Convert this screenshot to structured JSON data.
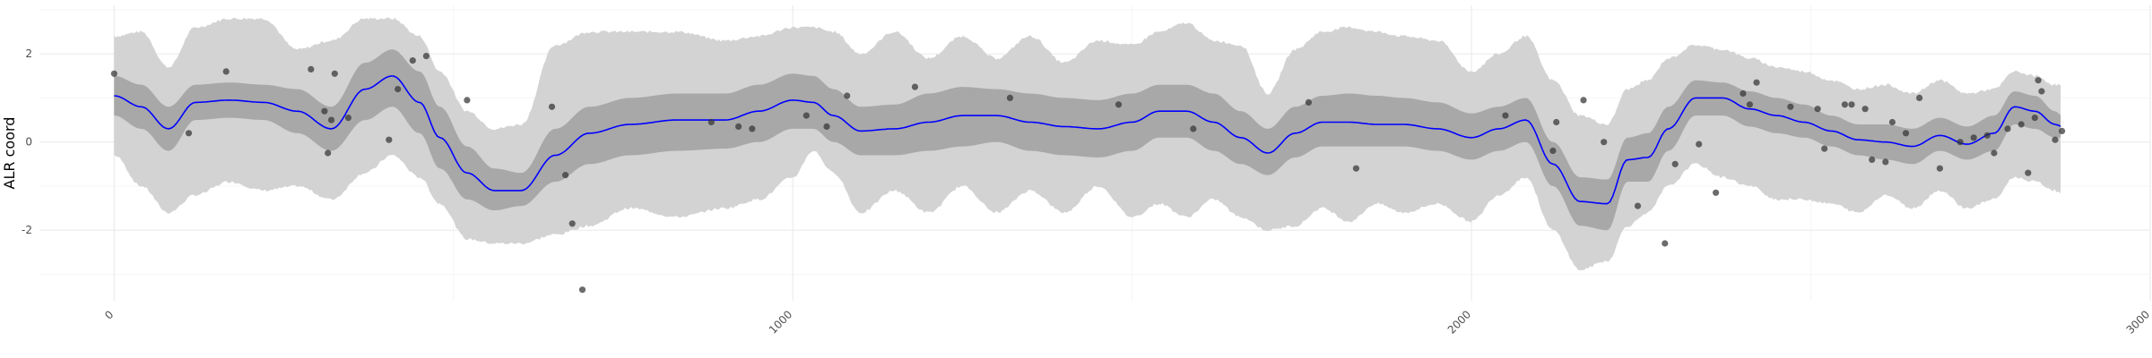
{
  "chart_data": {
    "type": "line",
    "title": "",
    "xlabel": "",
    "ylabel": "ALR coord",
    "xlim": [
      -110,
      3000
    ],
    "ylim": [
      -3.6,
      3.1
    ],
    "x_ticks": [
      0,
      1000,
      2000,
      3000
    ],
    "x_tick_labels": [
      "0",
      "1000",
      "2000",
      "3000"
    ],
    "y_ticks": [
      -2,
      0,
      2
    ],
    "y_tick_labels": [
      "-2",
      "0",
      "2"
    ],
    "grid": true,
    "legend": "none",
    "colors": {
      "mean_line": "#0000ff",
      "inner_band": "#a8a8a8",
      "outer_band": "#d3d3d3",
      "points": "#333333",
      "grid_major": "#ebebeb",
      "grid_minor": "#f5f5f5"
    },
    "mean_curve": {
      "x": [
        0,
        40,
        80,
        120,
        170,
        220,
        270,
        320,
        370,
        410,
        450,
        480,
        520,
        560,
        600,
        650,
        700,
        760,
        830,
        900,
        950,
        1000,
        1030,
        1060,
        1100,
        1150,
        1200,
        1250,
        1300,
        1350,
        1400,
        1450,
        1500,
        1540,
        1580,
        1620,
        1660,
        1700,
        1740,
        1780,
        1820,
        1860,
        1900,
        1950,
        2000,
        2040,
        2080,
        2120,
        2160,
        2200,
        2230,
        2260,
        2290,
        2330,
        2370,
        2410,
        2450,
        2490,
        2530,
        2570,
        2610,
        2650,
        2690,
        2730,
        2770,
        2800,
        2830,
        2860,
        2870
      ],
      "y": [
        1.05,
        0.8,
        0.3,
        0.9,
        0.95,
        0.9,
        0.7,
        0.3,
        1.2,
        1.5,
        0.9,
        0.1,
        -0.7,
        -1.1,
        -1.1,
        -0.3,
        0.2,
        0.4,
        0.5,
        0.5,
        0.7,
        0.95,
        0.9,
        0.6,
        0.25,
        0.3,
        0.45,
        0.6,
        0.6,
        0.45,
        0.35,
        0.3,
        0.45,
        0.7,
        0.7,
        0.45,
        0.1,
        -0.25,
        0.2,
        0.45,
        0.45,
        0.4,
        0.4,
        0.3,
        0.1,
        0.3,
        0.5,
        -0.5,
        -1.35,
        -1.4,
        -0.4,
        -0.35,
        0.3,
        1.0,
        1.0,
        0.75,
        0.6,
        0.45,
        0.25,
        0.05,
        0.0,
        -0.1,
        0.15,
        -0.05,
        0.2,
        0.8,
        0.7,
        0.4,
        0.35
      ]
    },
    "inner_band": {
      "x": [
        0,
        40,
        80,
        120,
        170,
        220,
        270,
        320,
        370,
        410,
        450,
        480,
        520,
        560,
        600,
        650,
        700,
        760,
        830,
        900,
        950,
        1000,
        1030,
        1060,
        1100,
        1150,
        1200,
        1250,
        1300,
        1350,
        1400,
        1450,
        1500,
        1540,
        1580,
        1620,
        1660,
        1700,
        1740,
        1780,
        1820,
        1860,
        1900,
        1950,
        2000,
        2040,
        2080,
        2120,
        2160,
        2200,
        2230,
        2260,
        2290,
        2330,
        2370,
        2410,
        2450,
        2490,
        2530,
        2570,
        2610,
        2650,
        2690,
        2730,
        2770,
        2800,
        2830,
        2860,
        2870
      ],
      "lower": [
        0.6,
        0.3,
        -0.2,
        0.5,
        0.55,
        0.5,
        0.2,
        -0.2,
        0.5,
        0.8,
        0.2,
        -0.6,
        -1.3,
        -1.55,
        -1.45,
        -0.9,
        -0.5,
        -0.3,
        -0.2,
        -0.15,
        0.0,
        0.3,
        0.3,
        0.0,
        -0.3,
        -0.3,
        -0.2,
        -0.1,
        0.0,
        -0.2,
        -0.3,
        -0.35,
        -0.2,
        0.1,
        0.1,
        -0.2,
        -0.5,
        -0.75,
        -0.35,
        -0.1,
        -0.1,
        -0.1,
        -0.1,
        -0.2,
        -0.4,
        -0.2,
        0.0,
        -1.0,
        -1.9,
        -2.0,
        -0.9,
        -0.9,
        -0.2,
        0.6,
        0.6,
        0.35,
        0.2,
        0.1,
        -0.1,
        -0.3,
        -0.4,
        -0.5,
        -0.2,
        -0.4,
        -0.2,
        0.4,
        0.3,
        0.1,
        0.1
      ],
      "upper": [
        1.5,
        1.3,
        0.8,
        1.3,
        1.35,
        1.3,
        1.2,
        0.8,
        1.8,
        2.1,
        1.6,
        0.8,
        -0.1,
        -0.6,
        -0.7,
        0.3,
        0.8,
        1.0,
        1.1,
        1.1,
        1.3,
        1.55,
        1.5,
        1.2,
        0.8,
        0.85,
        1.1,
        1.25,
        1.2,
        1.1,
        1.0,
        0.95,
        1.1,
        1.3,
        1.3,
        1.1,
        0.7,
        0.3,
        0.8,
        1.05,
        1.1,
        1.05,
        1.0,
        0.9,
        0.65,
        0.8,
        1.0,
        0.0,
        -0.8,
        -0.85,
        0.1,
        0.2,
        0.8,
        1.4,
        1.35,
        1.15,
        1.0,
        0.85,
        0.6,
        0.4,
        0.4,
        0.3,
        0.55,
        0.35,
        0.6,
        1.15,
        1.05,
        0.7,
        0.6
      ]
    },
    "outer_band": {
      "x": [
        0,
        40,
        80,
        120,
        170,
        220,
        270,
        320,
        370,
        410,
        450,
        480,
        520,
        560,
        600,
        650,
        700,
        760,
        830,
        900,
        950,
        1000,
        1030,
        1060,
        1100,
        1150,
        1200,
        1250,
        1300,
        1350,
        1400,
        1450,
        1500,
        1540,
        1580,
        1620,
        1660,
        1700,
        1740,
        1780,
        1820,
        1860,
        1900,
        1950,
        2000,
        2040,
        2080,
        2120,
        2160,
        2200,
        2230,
        2260,
        2290,
        2330,
        2370,
        2410,
        2450,
        2490,
        2530,
        2570,
        2610,
        2650,
        2690,
        2730,
        2770,
        2800,
        2830,
        2860,
        2870
      ],
      "lower": [
        -0.3,
        -1.0,
        -1.6,
        -1.2,
        -0.9,
        -1.1,
        -1.0,
        -1.3,
        -0.7,
        -0.3,
        -0.8,
        -1.4,
        -2.2,
        -2.3,
        -2.3,
        -2.1,
        -1.9,
        -1.5,
        -1.7,
        -1.5,
        -1.3,
        -0.8,
        -0.2,
        -0.7,
        -1.6,
        -1.1,
        -1.6,
        -1.0,
        -1.6,
        -1.1,
        -1.6,
        -1.0,
        -1.7,
        -1.4,
        -1.7,
        -1.3,
        -1.7,
        -2.0,
        -1.9,
        -1.5,
        -1.8,
        -1.4,
        -1.6,
        -1.4,
        -1.8,
        -1.2,
        -0.8,
        -2.0,
        -2.9,
        -2.7,
        -1.9,
        -1.6,
        -1.0,
        -0.5,
        -0.8,
        -1.0,
        -1.3,
        -1.3,
        -1.4,
        -1.6,
        -1.2,
        -1.5,
        -1.1,
        -1.5,
        -1.3,
        -0.8,
        -0.9,
        -1.1,
        -1.2
      ],
      "upper": [
        2.4,
        2.5,
        1.7,
        2.6,
        2.8,
        2.8,
        2.1,
        2.3,
        2.8,
        2.8,
        2.4,
        1.6,
        0.7,
        0.3,
        0.4,
        2.2,
        2.5,
        2.5,
        2.5,
        2.3,
        2.4,
        2.6,
        2.6,
        2.5,
        2.0,
        2.5,
        1.9,
        2.4,
        1.9,
        2.4,
        1.8,
        2.3,
        2.2,
        2.5,
        2.7,
        2.3,
        2.2,
        1.1,
        2.1,
        2.5,
        2.6,
        2.5,
        2.4,
        2.3,
        1.6,
        2.0,
        2.4,
        1.4,
        0.6,
        0.4,
        1.2,
        1.4,
        1.9,
        2.2,
        2.1,
        1.9,
        1.7,
        1.6,
        1.4,
        1.2,
        1.3,
        1.1,
        1.4,
        1.1,
        1.2,
        1.6,
        1.5,
        1.3,
        1.3
      ]
    },
    "points": {
      "x": [
        0,
        110,
        165,
        290,
        310,
        315,
        320,
        325,
        345,
        405,
        418,
        440,
        460,
        520,
        645,
        665,
        675,
        690,
        880,
        920,
        940,
        1020,
        1050,
        1080,
        1180,
        1320,
        1480,
        1590,
        1760,
        1830,
        2050,
        2120,
        2125,
        2165,
        2195,
        2245,
        2285,
        2300,
        2335,
        2360,
        2400,
        2410,
        2420,
        2470,
        2510,
        2520,
        2550,
        2560,
        2580,
        2590,
        2610,
        2620,
        2640,
        2660,
        2690,
        2720,
        2740,
        2760,
        2770,
        2790,
        2810,
        2820,
        2830,
        2835,
        2840,
        2860,
        2870
      ],
      "y": [
        1.55,
        0.2,
        1.6,
        1.65,
        0.7,
        -0.25,
        0.5,
        1.55,
        0.55,
        0.05,
        1.2,
        1.85,
        1.95,
        0.95,
        0.8,
        -0.75,
        -1.85,
        -3.35,
        0.45,
        0.35,
        0.3,
        0.6,
        0.35,
        1.05,
        1.25,
        1.0,
        0.85,
        0.3,
        0.9,
        -0.6,
        0.6,
        -0.2,
        0.45,
        0.95,
        0.0,
        -1.45,
        -2.3,
        -0.5,
        -0.05,
        -1.15,
        1.1,
        0.85,
        1.35,
        0.8,
        0.75,
        -0.15,
        0.85,
        0.85,
        0.75,
        -0.4,
        -0.45,
        0.45,
        0.2,
        1.0,
        -0.6,
        0.0,
        0.1,
        0.15,
        -0.25,
        0.3,
        0.4,
        -0.7,
        0.55,
        1.4,
        1.15,
        0.05,
        0.25
      ]
    }
  }
}
